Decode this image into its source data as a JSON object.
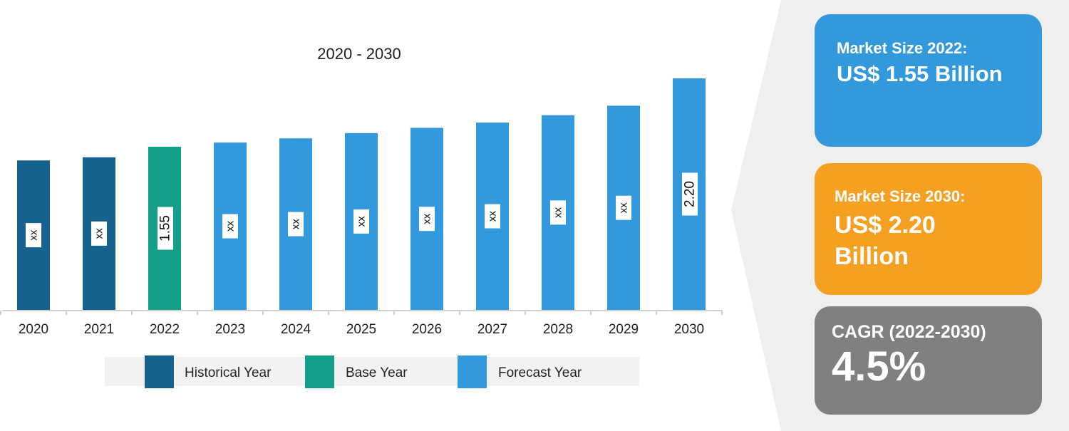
{
  "chart_data": {
    "type": "bar",
    "title": "2020 - 2030",
    "xlabel": "",
    "ylabel": "",
    "categories": [
      "2020",
      "2021",
      "2022",
      "2023",
      "2024",
      "2025",
      "2026",
      "2027",
      "2028",
      "2029",
      "2030"
    ],
    "values": [
      1.42,
      1.45,
      1.55,
      1.59,
      1.63,
      1.68,
      1.73,
      1.78,
      1.85,
      1.94,
      2.2
    ],
    "bar_labels": [
      "xx",
      "xx",
      "1.55",
      "xx",
      "xx",
      "xx",
      "xx",
      "xx",
      "xx",
      "xx",
      "2.20"
    ],
    "year_types": [
      "historical",
      "historical",
      "base",
      "forecast",
      "forecast",
      "forecast",
      "forecast",
      "forecast",
      "forecast",
      "forecast",
      "forecast"
    ],
    "legend": [
      {
        "key": "historical",
        "label": "Historical Year",
        "color": "#16628f"
      },
      {
        "key": "base",
        "label": "Base Year",
        "color": "#149f8b"
      },
      {
        "key": "forecast",
        "label": "Forecast Year",
        "color": "#3399dd"
      }
    ],
    "legend_position": "bottom",
    "grid": false
  },
  "cards": {
    "size_2022": {
      "label": "Market Size 2022:",
      "value": "US$ 1.55 Billion",
      "color": "#3399dd"
    },
    "size_2030": {
      "label": "Market Size 2030:",
      "value": "US$ 2.20 Billion",
      "color": "#f5a020"
    },
    "cagr": {
      "label": "CAGR (2022-2030)",
      "value": "4.5%",
      "color": "#808080"
    }
  }
}
